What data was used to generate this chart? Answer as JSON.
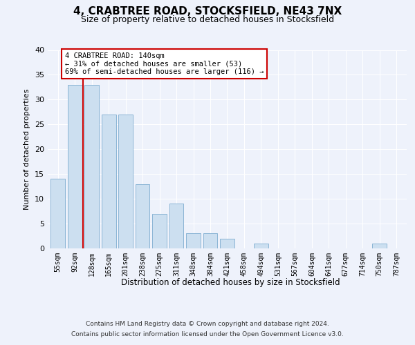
{
  "title": "4, CRABTREE ROAD, STOCKSFIELD, NE43 7NX",
  "subtitle": "Size of property relative to detached houses in Stocksfield",
  "xlabel": "Distribution of detached houses by size in Stocksfield",
  "ylabel": "Number of detached properties",
  "categories": [
    "55sqm",
    "92sqm",
    "128sqm",
    "165sqm",
    "201sqm",
    "238sqm",
    "275sqm",
    "311sqm",
    "348sqm",
    "384sqm",
    "421sqm",
    "458sqm",
    "494sqm",
    "531sqm",
    "567sqm",
    "604sqm",
    "641sqm",
    "677sqm",
    "714sqm",
    "750sqm",
    "787sqm"
  ],
  "values": [
    14,
    33,
    33,
    27,
    27,
    13,
    7,
    9,
    3,
    3,
    2,
    0,
    1,
    0,
    0,
    0,
    0,
    0,
    0,
    1,
    0
  ],
  "bar_color": "#ccdff0",
  "bar_edge_color": "#8ab4d4",
  "vline_x": 2.0,
  "vline_color": "#cc0000",
  "ylim": [
    0,
    40
  ],
  "yticks": [
    0,
    5,
    10,
    15,
    20,
    25,
    30,
    35,
    40
  ],
  "annotation_text": "4 CRABTREE ROAD: 140sqm\n← 31% of detached houses are smaller (53)\n69% of semi-detached houses are larger (116) →",
  "annotation_box_color": "#ffffff",
  "annotation_box_edge": "#cc0000",
  "footer_line1": "Contains HM Land Registry data © Crown copyright and database right 2024.",
  "footer_line2": "Contains public sector information licensed under the Open Government Licence v3.0.",
  "background_color": "#eef2fb",
  "plot_background": "#eef2fb",
  "grid_color": "#ffffff",
  "title_fontsize": 11,
  "subtitle_fontsize": 9,
  "ylabel_fontsize": 8,
  "tick_fontsize": 8,
  "xtick_fontsize": 7,
  "annotation_fontsize": 7.5,
  "footer_fontsize": 6.5
}
